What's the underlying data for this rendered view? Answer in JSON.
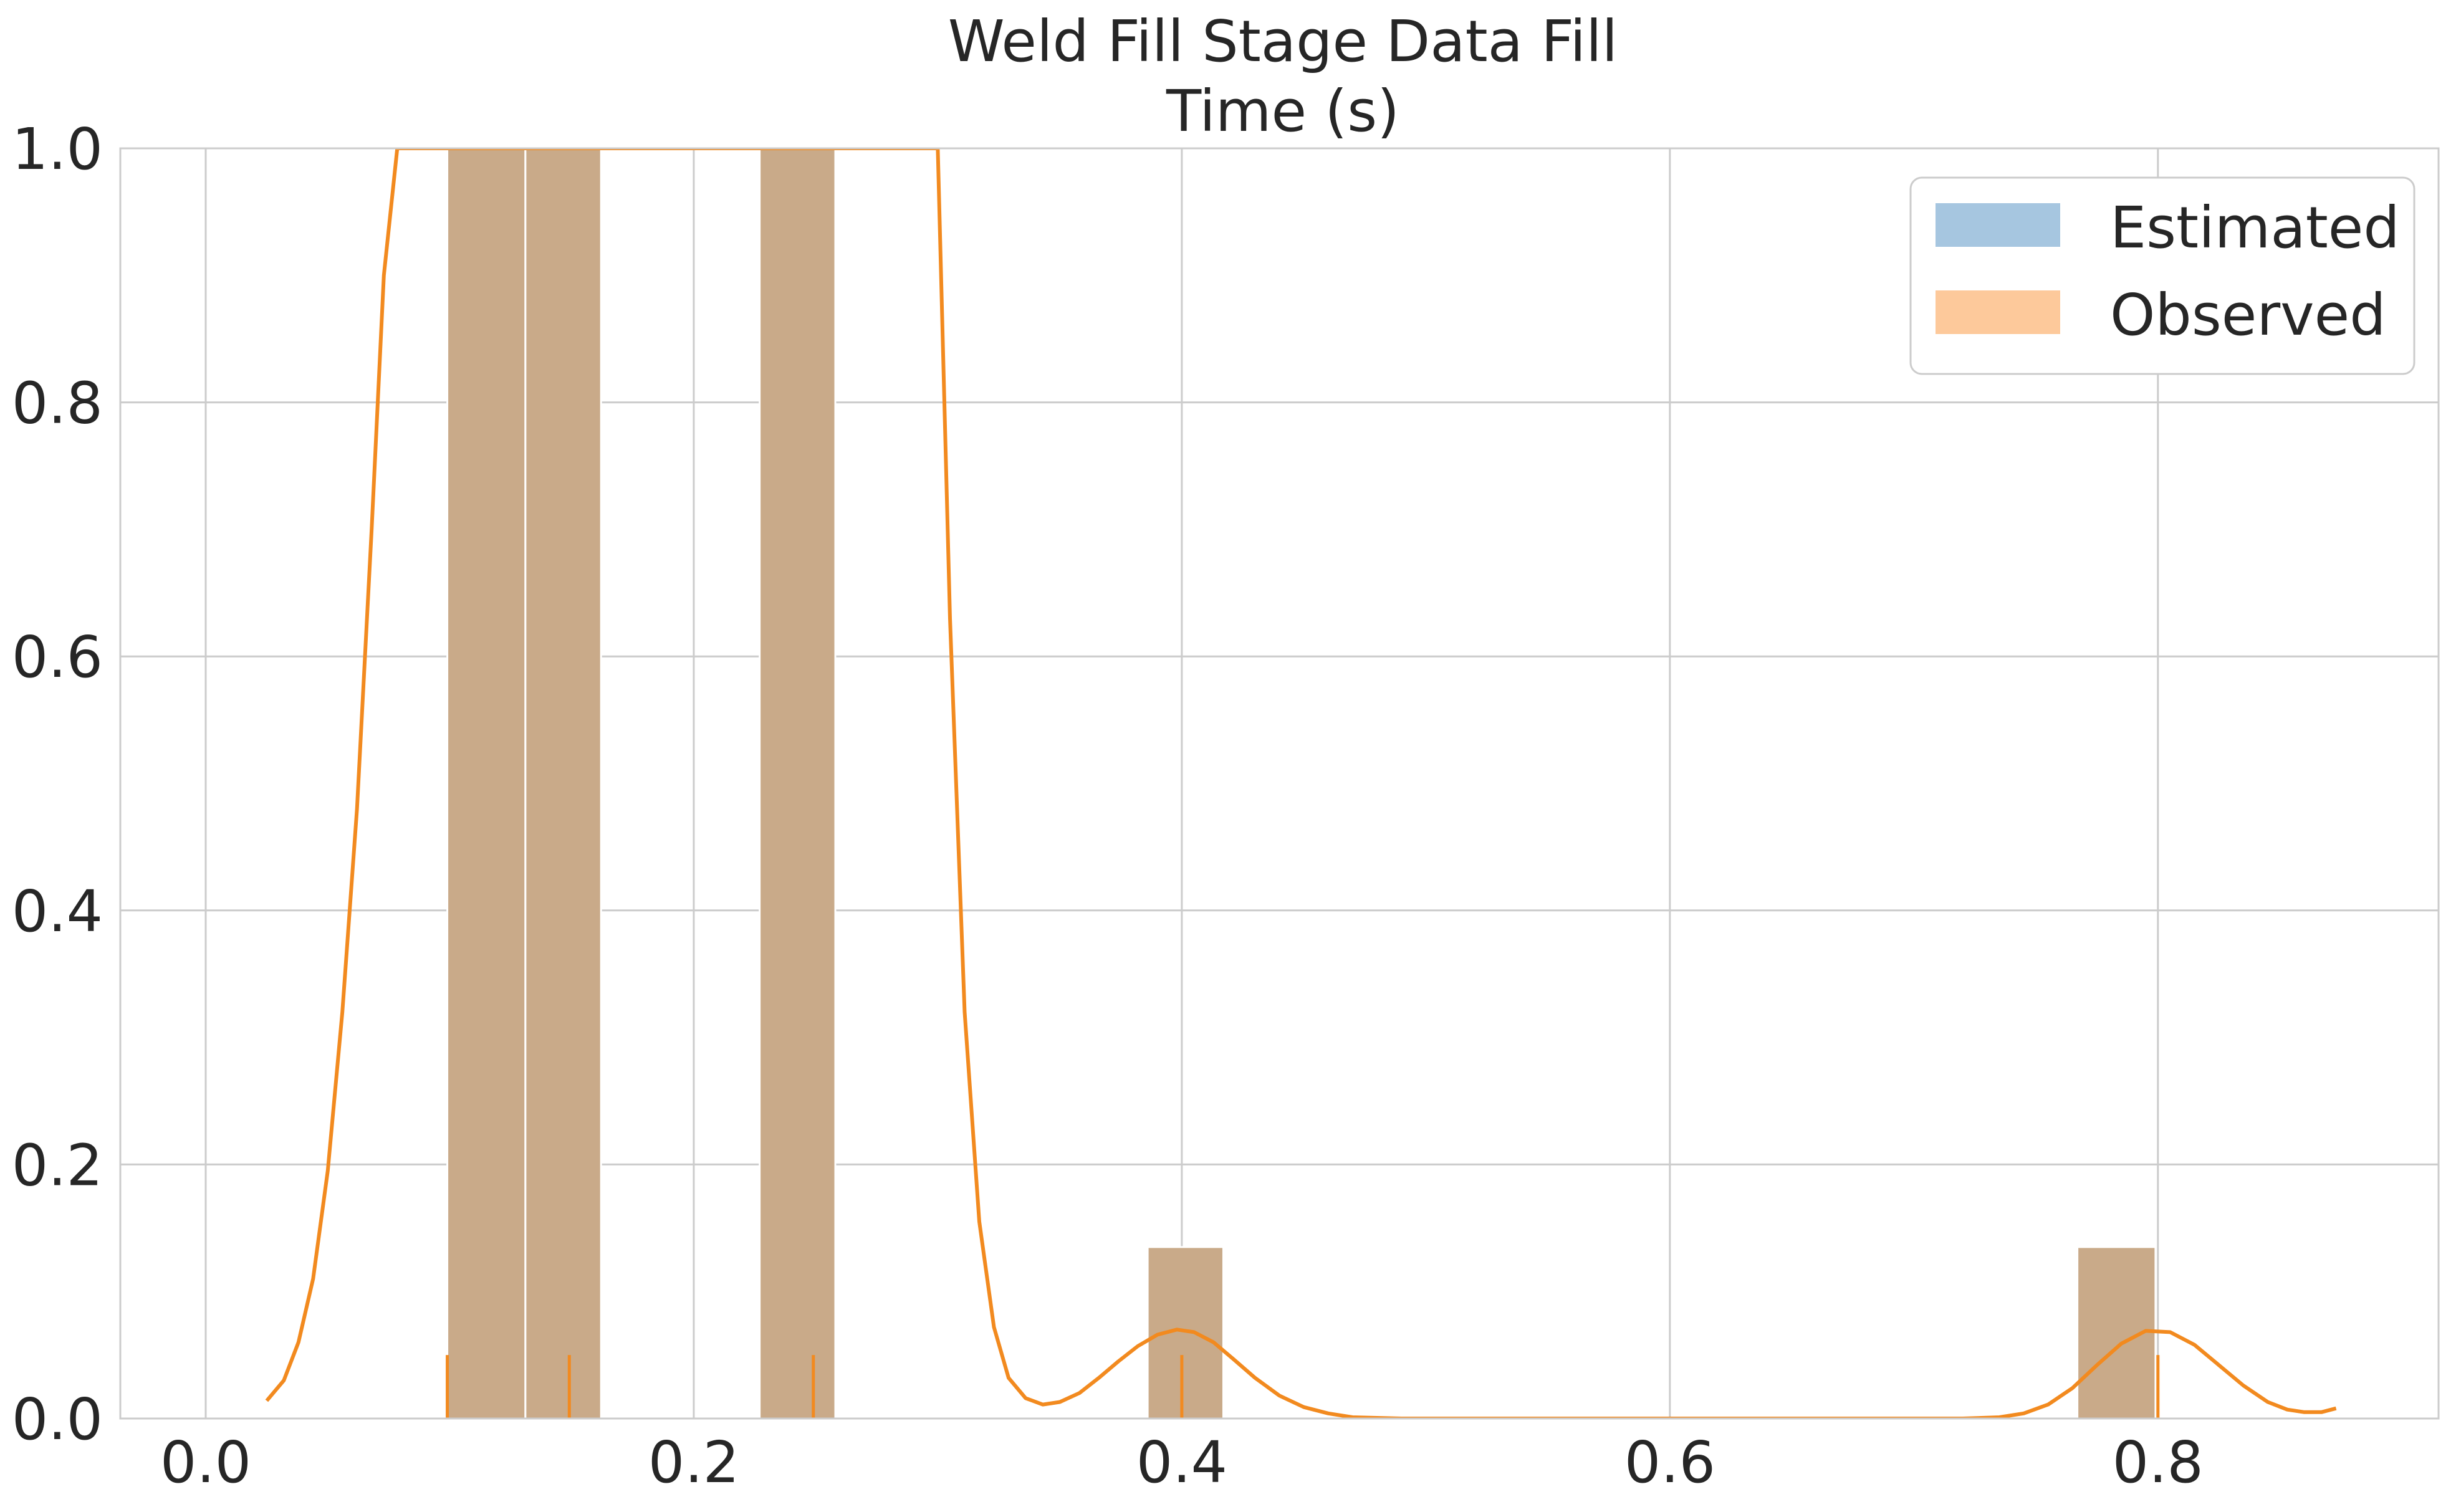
{
  "chart_data": {
    "type": "bar",
    "title": "Weld Fill Stage Data Fill",
    "subtitle": "Time (s)",
    "xlim": [
      -0.035,
      0.915
    ],
    "ylim": [
      0.0,
      1.0
    ],
    "grid": true,
    "legend_placement": "top-right",
    "x_ticks": [
      {
        "value": 0.0,
        "label": "0.0"
      },
      {
        "value": 0.2,
        "label": "0.2"
      },
      {
        "value": 0.4,
        "label": "0.4"
      },
      {
        "value": 0.6,
        "label": "0.6"
      },
      {
        "value": 0.8,
        "label": "0.8"
      }
    ],
    "y_ticks": [
      {
        "value": 0.0,
        "label": "0.0"
      },
      {
        "value": 0.2,
        "label": "0.2"
      },
      {
        "value": 0.4,
        "label": "0.4"
      },
      {
        "value": 0.6,
        "label": "0.6"
      },
      {
        "value": 0.8,
        "label": "0.8"
      },
      {
        "value": 1.0,
        "label": "1.0"
      }
    ],
    "legend": [
      {
        "label": "Estimated",
        "color": "#a6c6e0"
      },
      {
        "label": "Observed",
        "color": "#fdc99b"
      }
    ],
    "histogram_bins": [
      {
        "x_start": 0.099,
        "x_end": 0.131,
        "height": 1.0
      },
      {
        "x_start": 0.131,
        "x_end": 0.162,
        "height": 1.0
      },
      {
        "x_start": 0.227,
        "x_end": 0.258,
        "height": 1.0
      },
      {
        "x_start": 0.386,
        "x_end": 0.417,
        "height": 0.135
      },
      {
        "x_start": 0.767,
        "x_end": 0.799,
        "height": 0.135
      }
    ],
    "bar_color": "#c9aa89",
    "kde_color": "#f28a1f",
    "kde_line": [
      [
        0.025,
        0.014
      ],
      [
        0.032,
        0.03
      ],
      [
        0.038,
        0.06
      ],
      [
        0.044,
        0.11
      ],
      [
        0.05,
        0.195
      ],
      [
        0.056,
        0.32
      ],
      [
        0.062,
        0.48
      ],
      [
        0.068,
        0.7
      ],
      [
        0.073,
        0.9
      ],
      [
        0.0785,
        1.0
      ],
      [
        0.3,
        1.0
      ],
      [
        0.305,
        0.63
      ],
      [
        0.311,
        0.32
      ],
      [
        0.317,
        0.155
      ],
      [
        0.323,
        0.072
      ],
      [
        0.329,
        0.032
      ],
      [
        0.336,
        0.016
      ],
      [
        0.343,
        0.011
      ],
      [
        0.35,
        0.013
      ],
      [
        0.358,
        0.02
      ],
      [
        0.366,
        0.032
      ],
      [
        0.374,
        0.045
      ],
      [
        0.382,
        0.057
      ],
      [
        0.39,
        0.066
      ],
      [
        0.398,
        0.07
      ],
      [
        0.405,
        0.068
      ],
      [
        0.413,
        0.06
      ],
      [
        0.421,
        0.047
      ],
      [
        0.43,
        0.032
      ],
      [
        0.44,
        0.018
      ],
      [
        0.45,
        0.009
      ],
      [
        0.46,
        0.004
      ],
      [
        0.47,
        0.001
      ],
      [
        0.49,
        0.0
      ],
      [
        0.72,
        0.0
      ],
      [
        0.735,
        0.001
      ],
      [
        0.745,
        0.004
      ],
      [
        0.755,
        0.011
      ],
      [
        0.765,
        0.024
      ],
      [
        0.775,
        0.042
      ],
      [
        0.785,
        0.059
      ],
      [
        0.795,
        0.069
      ],
      [
        0.805,
        0.068
      ],
      [
        0.815,
        0.058
      ],
      [
        0.825,
        0.042
      ],
      [
        0.835,
        0.026
      ],
      [
        0.845,
        0.013
      ],
      [
        0.853,
        0.007
      ],
      [
        0.86,
        0.005
      ],
      [
        0.867,
        0.005
      ],
      [
        0.873,
        0.008
      ]
    ],
    "rug_x": [
      0.099,
      0.149,
      0.249,
      0.4,
      0.8
    ],
    "rug_height": 0.05
  }
}
